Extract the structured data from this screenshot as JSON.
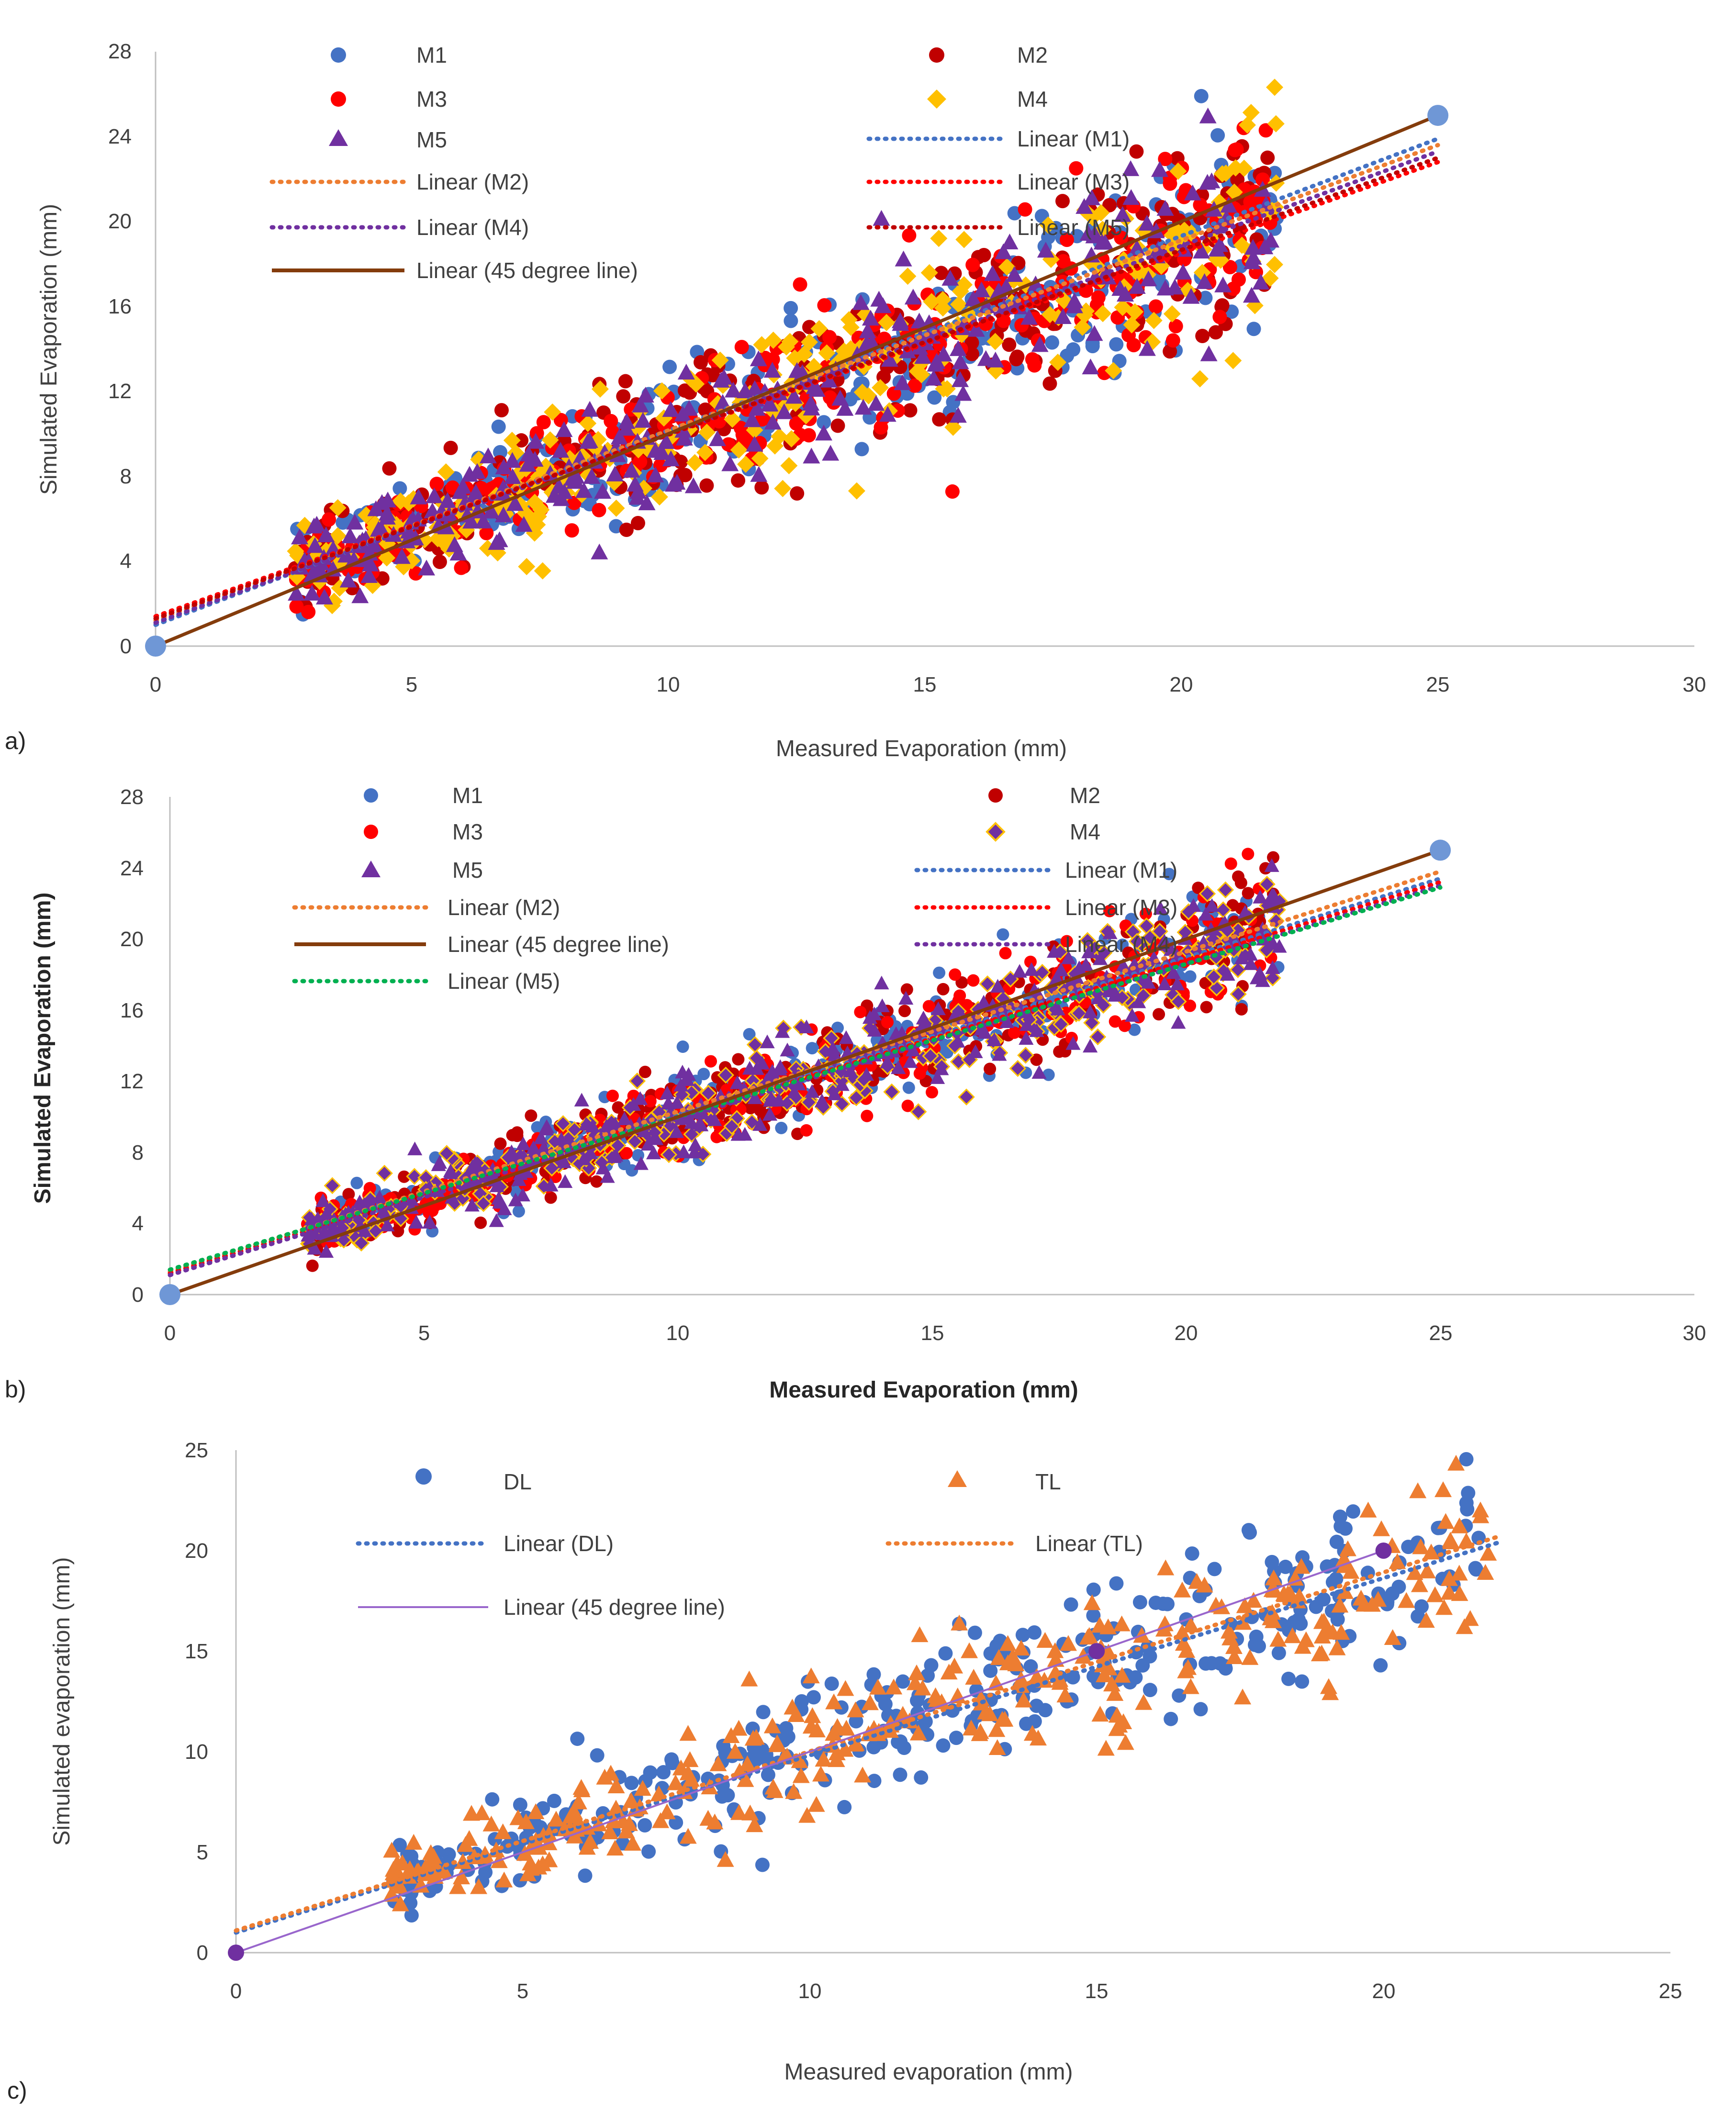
{
  "colors": {
    "M1": "#4472c4",
    "M2": "#c00000",
    "M3": "#ff0000",
    "M4": "#ffc000",
    "M5": "#7030a0",
    "line45": "#843c0c",
    "lin_M1": "#4472c4",
    "lin_M2": "#ed7d31",
    "lin_M3": "#ff0000",
    "lin_M4": "#7030a0",
    "lin_M5": "#c00000",
    "lin_M5_b": "#00b050",
    "DL": "#4472c4",
    "TL": "#ed7d31",
    "line45_c": "#9966cc"
  },
  "chart_data": [
    {
      "id": "a",
      "type": "scatter",
      "panel_label": "a)",
      "xlabel": "Measured Evaporation (mm)",
      "ylabel": "Simulated Evaporation (mm)",
      "xlim": [
        0,
        30
      ],
      "ylim": [
        0,
        28
      ],
      "xticks": [
        "0",
        "5",
        "10",
        "15",
        "20",
        "25",
        "30"
      ],
      "yticks": [
        "0",
        "4",
        "8",
        "12",
        "16",
        "20",
        "24",
        "28"
      ],
      "legend": [
        "M1",
        "M2",
        "M3",
        "M4",
        "M5",
        "Linear (M1)",
        "Linear (M2)",
        "Linear (M3)",
        "Linear (M4)",
        "Linear (M5)",
        "Linear (45 degree line)"
      ],
      "series": [
        {
          "name": "M1",
          "marker": "circle",
          "color": "#4472c4"
        },
        {
          "name": "M2",
          "marker": "circle",
          "color": "#c00000"
        },
        {
          "name": "M3",
          "marker": "circle",
          "color": "#ff0000"
        },
        {
          "name": "M4",
          "marker": "diamond",
          "color": "#ffc000"
        },
        {
          "name": "M5",
          "marker": "triangle",
          "color": "#7030a0"
        }
      ],
      "trendlines": [
        {
          "name": "Linear (M1)",
          "color": "#4472c4",
          "x": [
            0,
            25
          ],
          "y": [
            1.0,
            23.9
          ]
        },
        {
          "name": "Linear (M2)",
          "color": "#ed7d31",
          "x": [
            0,
            25
          ],
          "y": [
            1.2,
            23.6
          ]
        },
        {
          "name": "Linear (M3)",
          "color": "#ff0000",
          "x": [
            0,
            25
          ],
          "y": [
            1.4,
            22.8
          ]
        },
        {
          "name": "Linear (M4)",
          "color": "#7030a0",
          "x": [
            0,
            25
          ],
          "y": [
            1.1,
            23.3
          ]
        },
        {
          "name": "Linear (M5)",
          "color": "#c00000",
          "x": [
            0,
            25
          ],
          "y": [
            1.3,
            23.0
          ]
        }
      ],
      "line45": {
        "name": "Linear (45 degree line)",
        "x": [
          0,
          25
        ],
        "y": [
          0,
          25
        ],
        "endpoints_marker": "#6f97d6"
      }
    },
    {
      "id": "b",
      "type": "scatter",
      "panel_label": "b)",
      "xlabel": "Measured Evaporation (mm)",
      "ylabel": "Simulated Evaporation (mm)",
      "bold_labels": true,
      "xlim": [
        0,
        30
      ],
      "ylim": [
        0,
        28
      ],
      "xticks": [
        "0",
        "5",
        "10",
        "15",
        "20",
        "25",
        "30"
      ],
      "yticks": [
        "0",
        "4",
        "8",
        "12",
        "16",
        "20",
        "24",
        "28"
      ],
      "legend": [
        "M1",
        "M2",
        "M3",
        "M4",
        "M5",
        "Linear (M1)",
        "Linear (M2)",
        "Linear (M3)",
        "Linear (45 degree line)",
        "Linear (M4)",
        "Linear (M5)"
      ],
      "series": [
        {
          "name": "M1",
          "marker": "circle",
          "color": "#4472c4"
        },
        {
          "name": "M2",
          "marker": "circle",
          "color": "#c00000"
        },
        {
          "name": "M3",
          "marker": "circle",
          "color": "#ff0000"
        },
        {
          "name": "M4",
          "marker": "diamond",
          "color": "#ffc000"
        },
        {
          "name": "M5",
          "marker": "triangle",
          "color": "#7030a0"
        }
      ],
      "trendlines": [
        {
          "name": "Linear (M1)",
          "color": "#4472c4",
          "x": [
            0,
            25
          ],
          "y": [
            1.2,
            23.4
          ]
        },
        {
          "name": "Linear (M2)",
          "color": "#ed7d31",
          "x": [
            0,
            25
          ],
          "y": [
            1.3,
            23.8
          ]
        },
        {
          "name": "Linear (M3)",
          "color": "#ff0000",
          "x": [
            0,
            25
          ],
          "y": [
            1.2,
            23.2
          ]
        },
        {
          "name": "Linear (M4)",
          "color": "#7030a0",
          "x": [
            0,
            25
          ],
          "y": [
            1.1,
            23.0
          ]
        },
        {
          "name": "Linear (M5)",
          "color": "#00b050",
          "x": [
            0,
            25
          ],
          "y": [
            1.4,
            22.9
          ]
        }
      ],
      "line45": {
        "name": "Linear (45 degree line)",
        "x": [
          0,
          25
        ],
        "y": [
          0,
          25
        ],
        "endpoints_marker": "#6f97d6"
      }
    },
    {
      "id": "c",
      "type": "scatter",
      "panel_label": "c)",
      "xlabel": "Measured evaporation (mm)",
      "ylabel": "Simulated evaporation (mm)",
      "xlim": [
        0,
        25
      ],
      "ylim": [
        0,
        25
      ],
      "xticks": [
        "0",
        "5",
        "10",
        "15",
        "20",
        "25"
      ],
      "yticks": [
        "0",
        "5",
        "10",
        "15",
        "20",
        "25"
      ],
      "legend": [
        "DL",
        "TL",
        "Linear (DL)",
        "Linear (TL)",
        "Linear (45 degree line)"
      ],
      "series": [
        {
          "name": "DL",
          "marker": "circle",
          "color": "#4472c4"
        },
        {
          "name": "TL",
          "marker": "triangle",
          "color": "#ed7d31"
        }
      ],
      "trendlines": [
        {
          "name": "Linear (DL)",
          "color": "#4472c4",
          "x": [
            0,
            22
          ],
          "y": [
            1.0,
            20.4
          ]
        },
        {
          "name": "Linear (TL)",
          "color": "#ed7d31",
          "x": [
            0,
            22
          ],
          "y": [
            1.1,
            20.7
          ]
        }
      ],
      "line45": {
        "name": "Linear (45 degree line)",
        "x": [
          0,
          20
        ],
        "y": [
          0,
          20
        ],
        "points_x": [
          0,
          15,
          20
        ],
        "endpoints_marker": "#7030a0"
      }
    }
  ]
}
